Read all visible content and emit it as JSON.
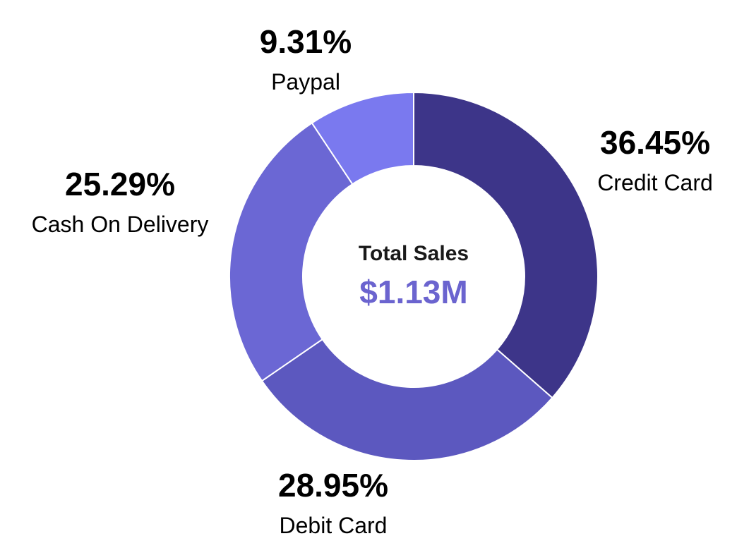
{
  "chart_data": {
    "type": "pie",
    "style": "donut",
    "categories": [
      "Credit Card",
      "Debit Card",
      "Cash On Delivery",
      "Paypal"
    ],
    "values": [
      36.45,
      28.95,
      25.29,
      9.31
    ],
    "value_labels": [
      "36.45%",
      "28.95%",
      "25.29%",
      "9.31%"
    ],
    "colors": [
      "#3d3589",
      "#5c58bf",
      "#6b67d4",
      "#7a79ef"
    ],
    "center": {
      "title": "Total Sales",
      "value": "$1.13M",
      "value_color": "#6b64cf"
    },
    "legend": "none"
  }
}
